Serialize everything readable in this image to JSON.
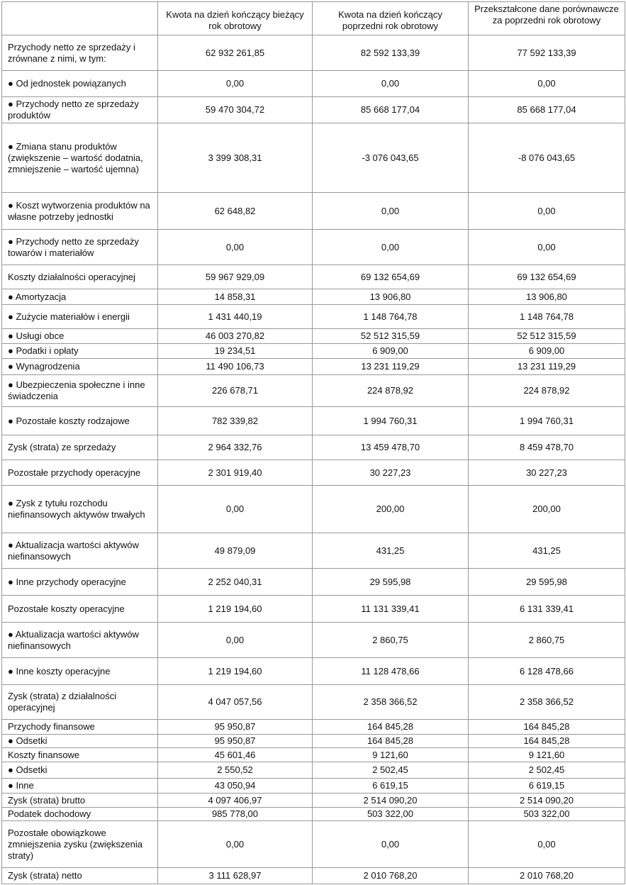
{
  "header": {
    "columns": [
      "",
      "Kwota na dzień kończący bieżący rok obrotowy",
      "Kwota na dzień kończący poprzedni rok obrotowy",
      "Przekształcone dane porównawcze za poprzedni rok obrotowy"
    ]
  },
  "rows": [
    {
      "label": "Przychody netto ze sprzedaży i zrównane z nimi, w tym:",
      "values": [
        "62 932 261,85",
        "82 592 133,39",
        "77 592 133,39"
      ]
    },
    {
      "label": "● Od jednostek powiązanych",
      "values": [
        "0,00",
        "0,00",
        "0,00"
      ]
    },
    {
      "label": "● Przychody netto ze sprzedaży produktów",
      "values": [
        "59 470 304,72",
        "85 668 177,04",
        "85 668 177,04"
      ]
    },
    {
      "label": "● Zmiana stanu produktów (zwiększenie – wartość dodatnia, zmniejszenie – wartość ujemna)",
      "values": [
        "3 399 308,31",
        "-3 076 043,65",
        "-8 076 043,65"
      ]
    },
    {
      "label": "● Koszt wytworzenia produktów na własne potrzeby jednostki",
      "values": [
        "62 648,82",
        "0,00",
        "0,00"
      ]
    },
    {
      "label": "● Przychody netto ze sprzedaży towarów i materiałów",
      "values": [
        "0,00",
        "0,00",
        "0,00"
      ]
    },
    {
      "label": "Koszty działalności operacyjnej",
      "values": [
        "59 967 929,09",
        "69 132 654,69",
        "69 132 654,69"
      ]
    },
    {
      "label": "● Amortyzacja",
      "values": [
        "14 858,31",
        "13 906,80",
        "13 906,80"
      ]
    },
    {
      "label": "● Zużycie materiałów i energii",
      "values": [
        "1 431 440,19",
        "1 148 764,78",
        "1 148 764,78"
      ]
    },
    {
      "label": "● Usługi obce",
      "values": [
        "46 003 270,82",
        "52 512 315,59",
        "52 512 315,59"
      ]
    },
    {
      "label": "● Podatki i opłaty",
      "values": [
        "19 234,51",
        "6 909,00",
        "6 909,00"
      ]
    },
    {
      "label": "● Wynagrodzenia",
      "values": [
        "11 490 106,73",
        "13 231 119,29",
        "13 231 119,29"
      ]
    },
    {
      "label": "● Ubezpieczenia społeczne i inne świadczenia",
      "values": [
        "226 678,71",
        "224 878,92",
        "224 878,92"
      ]
    },
    {
      "label": "● Pozostałe koszty rodzajowe",
      "values": [
        "782 339,82",
        "1 994 760,31",
        "1 994 760,31"
      ]
    },
    {
      "label": "Zysk (strata) ze sprzedaży",
      "values": [
        "2 964 332,76",
        "13 459 478,70",
        "8 459 478,70"
      ]
    },
    {
      "label": "Pozostałe przychody operacyjne",
      "values": [
        "2 301 919,40",
        "30 227,23",
        "30 227,23"
      ]
    },
    {
      "label": "● Zysk z tytułu rozchodu niefinansowych aktywów trwałych",
      "values": [
        "0,00",
        "200,00",
        "200,00"
      ]
    },
    {
      "label": "● Aktualizacja wartości aktywów niefinansowych",
      "values": [
        "49 879,09",
        "431,25",
        "431,25"
      ]
    },
    {
      "label": "● Inne przychody operacyjne",
      "values": [
        "2 252 040,31",
        "29 595,98",
        "29 595,98"
      ]
    },
    {
      "label": "Pozostałe koszty operacyjne",
      "values": [
        "1 219 194,60",
        "11 131 339,41",
        "6 131 339,41"
      ]
    },
    {
      "label": "● Aktualizacja wartości aktywów niefinansowych",
      "values": [
        "0,00",
        "2 860,75",
        "2 860,75"
      ]
    },
    {
      "label": "● Inne koszty operacyjne",
      "values": [
        "1 219 194,60",
        "11 128 478,66",
        "6 128 478,66"
      ]
    },
    {
      "label": "Zysk (strata) z działalności operacyjnej",
      "values": [
        "4 047 057,56",
        "2 358 366,52",
        "2 358 366,52"
      ]
    },
    {
      "label": "Przychody finansowe",
      "values": [
        "95 950,87",
        "164 845,28",
        "164 845,28"
      ]
    },
    {
      "label": "● Odsetki",
      "values": [
        "95 950,87",
        "164 845,28",
        "164 845,28"
      ]
    },
    {
      "label": "Koszty finansowe",
      "values": [
        "45 601,46",
        "9 121,60",
        "9 121,60"
      ]
    },
    {
      "label": "● Odsetki",
      "values": [
        "2 550,52",
        "2 502,45",
        "2 502,45"
      ]
    },
    {
      "label": "● Inne",
      "values": [
        "43 050,94",
        "6 619,15",
        "6 619,15"
      ]
    },
    {
      "label": "Zysk (strata) brutto",
      "values": [
        "4 097 406,97",
        "2 514 090,20",
        "2 514 090,20"
      ]
    },
    {
      "label": "Podatek dochodowy",
      "values": [
        "985 778,00",
        "503 322,00",
        "503 322,00"
      ]
    },
    {
      "label": "Pozostałe obowiązkowe zmniejszenia zysku (zwiększenia straty)",
      "values": [
        "0,00",
        "0,00",
        "0,00"
      ]
    },
    {
      "label": "Zysk (strata) netto",
      "values": [
        "3 111 628,97",
        "2 010 768,20",
        "2 010 768,20"
      ]
    }
  ]
}
